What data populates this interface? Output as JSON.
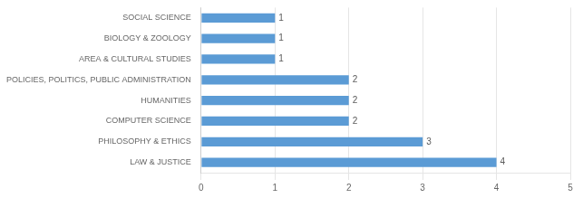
{
  "chart_data": {
    "type": "bar",
    "orientation": "horizontal",
    "categories": [
      "LAW & JUSTICE",
      "PHILOSOPHY & ETHICS",
      "COMPUTER SCIENCE",
      "HUMANITIES",
      "POLICIES, POLITICS, PUBLIC ADMINISTRATION",
      "AREA & CULTURAL STUDIES",
      "BIOLOGY & ZOOLOGY",
      "SOCIAL SCIENCE"
    ],
    "values": [
      4,
      3,
      2,
      2,
      2,
      1,
      1,
      1
    ],
    "color": "#5B9BD5",
    "xlim": [
      0,
      5
    ],
    "xticks": [
      0,
      1,
      2,
      3,
      4,
      5
    ],
    "grid": true,
    "data_labels": true
  }
}
